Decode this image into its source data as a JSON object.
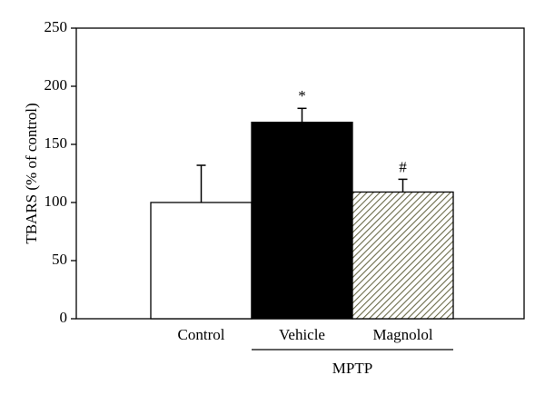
{
  "chart_data": {
    "type": "bar",
    "y_label": "TBARS (% of control)",
    "categories": [
      "Control",
      "Vehicle",
      "Magnolol"
    ],
    "values": [
      100,
      169,
      109
    ],
    "errors": [
      32,
      12,
      11
    ],
    "colors": [
      "#ffffff",
      "#000000",
      "#7a7a5a"
    ],
    "hatch": [
      false,
      false,
      true
    ],
    "annotations": [
      {
        "index": 1,
        "text": "*"
      },
      {
        "index": 2,
        "text": "#"
      }
    ],
    "group": {
      "label": "MPTP",
      "from": 1,
      "to": 2
    },
    "ylim": [
      0,
      250
    ],
    "yticks": [
      0,
      50,
      100,
      150,
      200,
      250
    ]
  }
}
